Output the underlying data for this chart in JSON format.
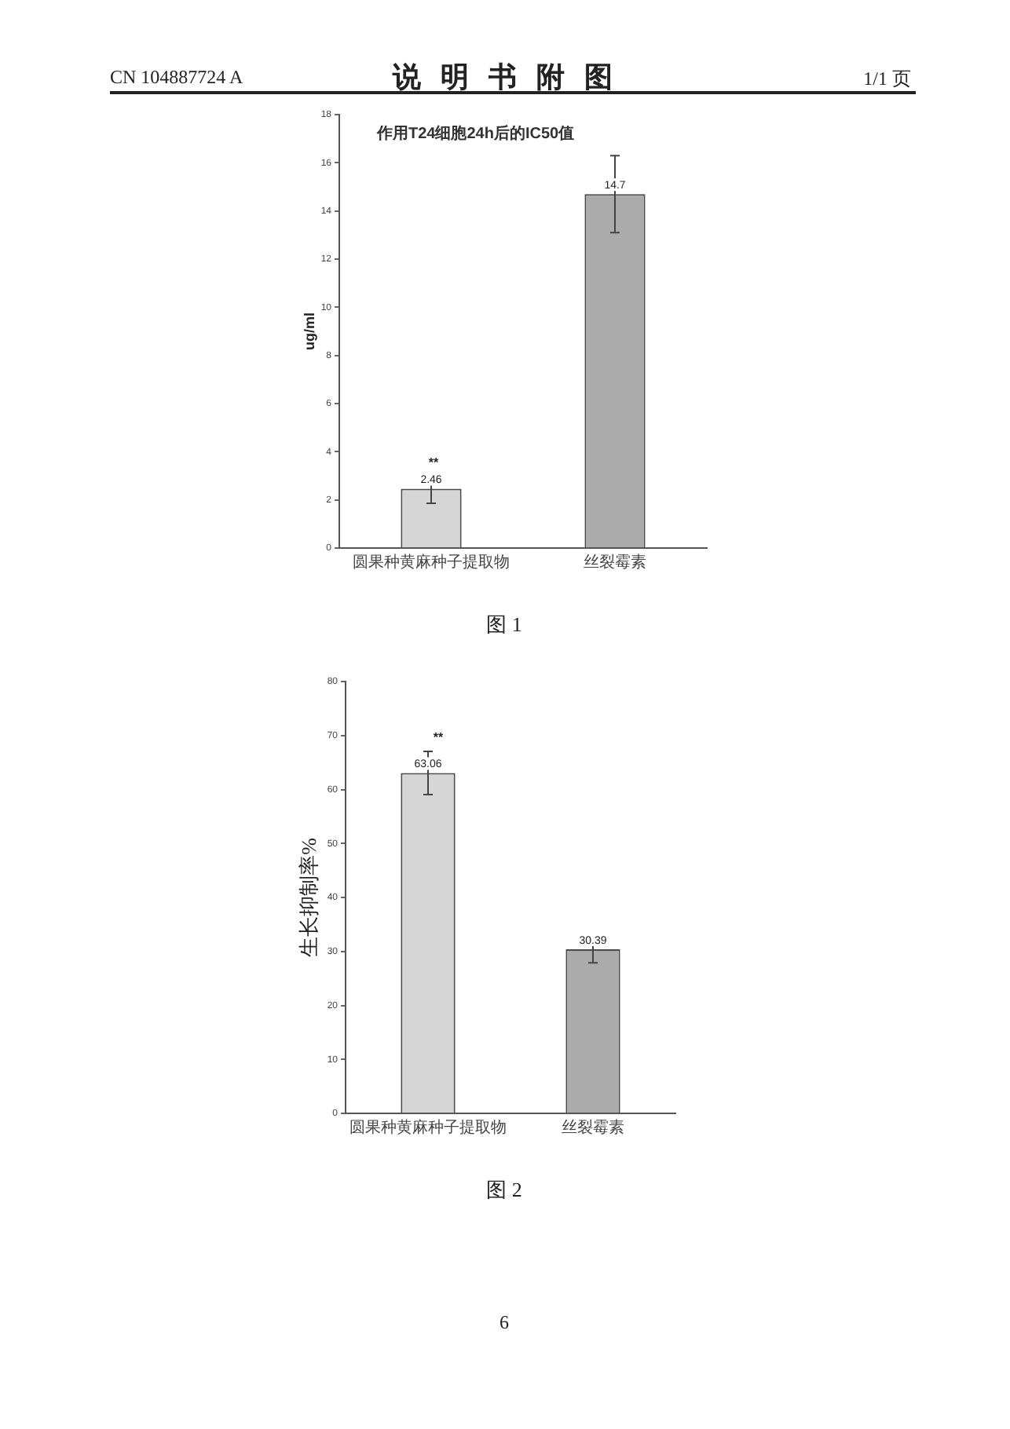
{
  "chart_data": [
    {
      "type": "bar",
      "title": "作用T24细胞24h后的IC50值",
      "ylabel": "ug/ml",
      "categories": [
        "圆果种黄麻种子提取物",
        "丝裂霉素"
      ],
      "values": [
        2.46,
        14.7
      ],
      "errors": [
        0.6,
        1.6
      ],
      "colors": [
        "#d6d6d6",
        "#ababab"
      ],
      "ylim": [
        0,
        18
      ],
      "yticks": [
        0,
        2,
        4,
        6,
        8,
        10,
        12,
        14,
        16,
        18
      ],
      "data_labels": true,
      "annotations": [
        "CN 104887724 A",
        "说 明 书 附 图",
        "1/1 页",
        "**",
        "图 1"
      ]
    },
    {
      "type": "bar",
      "ylabel": "生长抑制率%",
      "categories": [
        "圆果种黄麻种子提取物",
        "丝裂霉素"
      ],
      "values": [
        63.06,
        30.39
      ],
      "errors": [
        4,
        2.5
      ],
      "colors": [
        "#d6d6d6",
        "#ababab"
      ],
      "ylim": [
        0,
        80
      ],
      "yticks": [
        0,
        10,
        20,
        30,
        40,
        50,
        60,
        70,
        80
      ],
      "data_labels": true,
      "annotations": [
        "**",
        "图 2",
        "6"
      ]
    }
  ]
}
